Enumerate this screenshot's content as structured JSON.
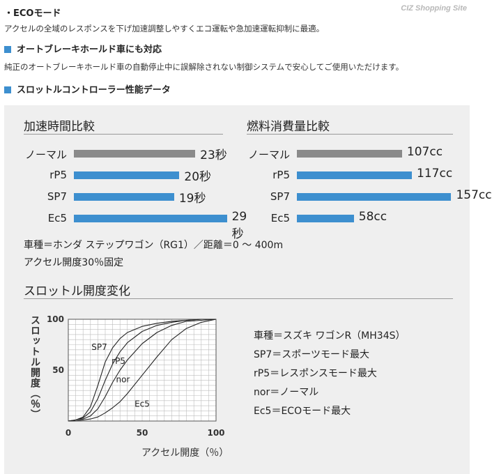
{
  "watermark": "CIZ Shopping Site",
  "eco": {
    "heading": "・ECOモード",
    "desc": "アクセルの全域のレスポンスを下げ加速調整しやすくエコ運転や急加速運転抑制に最適。"
  },
  "autobrake": {
    "heading": "オートブレーキホールド車にも対応",
    "desc": "純正のオートブレーキホールド車の自動停止中に誤解除されない制御システムで安心してご使用いただけます。"
  },
  "perf_heading": "スロットルコントローラー性能データ",
  "accel": {
    "title": "加速時間比較",
    "note1": "車種＝ホンダ ステップワゴン（RG1）／距離＝0 ～ 400m",
    "note2": "アクセル開度30％固定"
  },
  "fuel": {
    "title": "燃料消費量比較"
  },
  "throttle": {
    "title": "スロットル開度変化",
    "ylabel": "スロットル開度（％）",
    "xlabel": "アクセル開度（％）",
    "legend": [
      "車種＝スズキ ワゴンR（MH34S）",
      "SP7＝スポーツモード最大",
      "rP5＝レスポンスモード最大",
      "nor＝ノーマル",
      "Ec5＝ECOモード最大"
    ]
  },
  "colors": {
    "gray_bar": "#8a8a8a",
    "blue_bar": "#3d8fcf",
    "accent": "#3d8fcf"
  },
  "chart_data": [
    {
      "type": "bar",
      "orientation": "horizontal",
      "title": "加速時間比較",
      "categories": [
        "ノーマル",
        "rP5",
        "SP7",
        "Ec5"
      ],
      "values": [
        23,
        20,
        19,
        29
      ],
      "value_labels": [
        "23秒",
        "20秒",
        "19秒",
        "29秒"
      ],
      "unit": "秒",
      "xlim": [
        0,
        35
      ]
    },
    {
      "type": "bar",
      "orientation": "horizontal",
      "title": "燃料消費量比較",
      "categories": [
        "ノーマル",
        "rP5",
        "SP7",
        "Ec5"
      ],
      "values": [
        107,
        117,
        157,
        58
      ],
      "value_labels": [
        "107cc",
        "117cc",
        "157cc",
        "58cc"
      ],
      "unit": "cc",
      "xlim": [
        0,
        190
      ]
    },
    {
      "type": "line",
      "title": "スロットル開度変化",
      "xlabel": "アクセル開度（％）",
      "ylabel": "スロットル開度（％）",
      "xlim": [
        0,
        100
      ],
      "ylim": [
        0,
        100
      ],
      "x_ticks": [
        "0",
        "50",
        "100"
      ],
      "y_ticks": [
        "50",
        "100"
      ],
      "grid": true,
      "series": [
        {
          "name": "SP7",
          "x": [
            0,
            5,
            10,
            15,
            20,
            25,
            30,
            35,
            40,
            50,
            60,
            70,
            80,
            90,
            100
          ],
          "values": [
            0,
            1,
            4,
            14,
            35,
            58,
            72,
            81,
            87,
            93,
            96,
            98,
            99,
            100,
            100
          ]
        },
        {
          "name": "rP5",
          "x": [
            0,
            5,
            10,
            15,
            20,
            25,
            30,
            35,
            40,
            50,
            60,
            70,
            80,
            90,
            100
          ],
          "values": [
            0,
            1,
            3,
            9,
            22,
            40,
            56,
            68,
            77,
            88,
            94,
            97,
            99,
            100,
            100
          ]
        },
        {
          "name": "nor",
          "x": [
            0,
            5,
            10,
            15,
            20,
            25,
            30,
            35,
            40,
            50,
            60,
            70,
            80,
            90,
            100
          ],
          "values": [
            0,
            1,
            2,
            5,
            12,
            24,
            38,
            50,
            60,
            76,
            87,
            94,
            98,
            99,
            100
          ]
        },
        {
          "name": "Ec5",
          "x": [
            0,
            5,
            10,
            15,
            20,
            25,
            30,
            35,
            40,
            50,
            60,
            70,
            80,
            90,
            100
          ],
          "values": [
            0,
            0,
            1,
            2,
            4,
            8,
            13,
            19,
            27,
            45,
            63,
            80,
            91,
            97,
            100
          ]
        }
      ]
    }
  ]
}
